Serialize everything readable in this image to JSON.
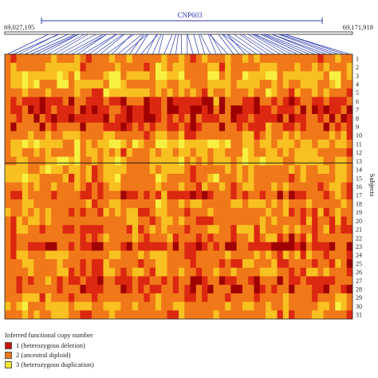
{
  "chart_data": {
    "type": "heatmap",
    "region_label": "CNP603",
    "start_position": "69,027,195",
    "end_position": "69,171,918",
    "y_axis_title": "Subjects",
    "rows": [
      "1",
      "2",
      "3",
      "4",
      "5",
      "6",
      "7",
      "8",
      "9",
      "10",
      "11",
      "12",
      "13",
      "14",
      "15",
      "16",
      "17",
      "18",
      "19",
      "20",
      "21",
      "22",
      "23",
      "24",
      "25",
      "26",
      "27",
      "28",
      "29",
      "30",
      "31"
    ],
    "column_count": 60,
    "group_divider_after_row": 14,
    "legend": {
      "title": "Inferred functional copy number",
      "items": [
        {
          "value": 1,
          "label": "1 (heterozygous deletion)",
          "color": "#c8140a"
        },
        {
          "value": 2,
          "label": "2 (ancestral diploid)",
          "color": "#f07818"
        },
        {
          "value": 3,
          "label": "3 (heterozygous duplication)",
          "color": "#f8e830"
        }
      ]
    },
    "colors": {
      "min": "#a00000",
      "low": "#dc2810",
      "mid": "#f07818",
      "high": "#f8c020",
      "max": "#f8f040",
      "connector": "#2838b0"
    }
  }
}
